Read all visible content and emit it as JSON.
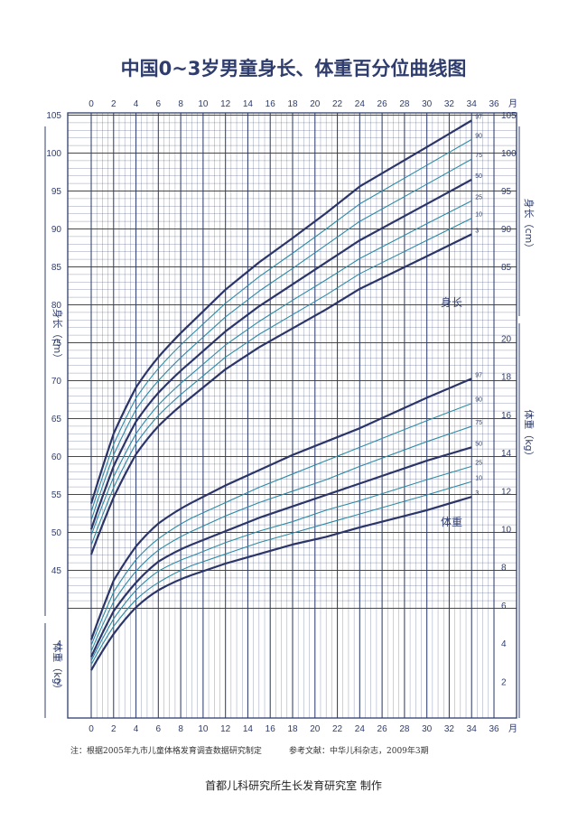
{
  "chart_data": {
    "type": "line",
    "title": "中国0~3岁男童身长、体重百分位曲线图",
    "x_axis": {
      "ticks": [
        "0",
        "2",
        "4",
        "6",
        "8",
        "10",
        "12",
        "14",
        "16",
        "18",
        "20",
        "22",
        "24",
        "26",
        "28",
        "30",
        "32",
        "34",
        "36"
      ],
      "unit": "月",
      "range": [
        0,
        36
      ]
    },
    "height_axis": {
      "label": "身长（cm）",
      "range": [
        40,
        106
      ],
      "ticks": [
        "45",
        "50",
        "55",
        "60",
        "65",
        "70",
        "75",
        "80",
        "85",
        "90",
        "95",
        "100",
        "105"
      ],
      "right_ticks": [
        "85",
        "90",
        "95",
        "100",
        "105"
      ]
    },
    "weight_axis": {
      "label": "体重（kg）",
      "range": [
        0,
        22
      ],
      "left_ticks": [
        "2",
        "4"
      ],
      "right_ticks": [
        "2",
        "4",
        "6",
        "8",
        "10",
        "12",
        "14",
        "16",
        "18",
        "20"
      ]
    },
    "percentiles": [
      "3",
      "10",
      "25",
      "50",
      "75",
      "90",
      "97"
    ],
    "age_months": [
      0,
      2,
      4,
      6,
      9,
      12,
      15,
      18,
      21,
      24,
      30,
      34
    ],
    "height_series": [
      {
        "name": "3",
        "values": [
          47.1,
          54.6,
          60.3,
          64.0,
          67.9,
          71.5,
          74.4,
          76.9,
          79.4,
          82.1,
          86.4,
          89.3
        ]
      },
      {
        "name": "10",
        "values": [
          48.3,
          55.9,
          61.7,
          65.4,
          69.4,
          73.1,
          76.1,
          78.7,
          81.3,
          84.1,
          88.5,
          91.4
        ]
      },
      {
        "name": "25",
        "values": [
          49.6,
          57.3,
          63.0,
          66.8,
          70.9,
          74.7,
          77.8,
          80.6,
          83.3,
          86.1,
          90.7,
          93.7
        ]
      },
      {
        "name": "50",
        "values": [
          50.4,
          58.7,
          64.6,
          68.4,
          72.6,
          76.5,
          79.8,
          82.7,
          85.6,
          88.5,
          93.3,
          96.5
        ]
      },
      {
        "name": "75",
        "values": [
          51.6,
          60.2,
          66.2,
          70.0,
          74.4,
          78.4,
          81.8,
          84.8,
          87.9,
          91.0,
          95.9,
          99.2
        ]
      },
      {
        "name": "90",
        "values": [
          52.7,
          61.6,
          67.7,
          71.6,
          76.1,
          80.2,
          83.7,
          86.8,
          90.0,
          93.3,
          98.4,
          101.8
        ]
      },
      {
        "name": "97",
        "values": [
          53.8,
          63.0,
          69.1,
          73.1,
          77.7,
          82.0,
          85.6,
          88.8,
          92.1,
          95.6,
          100.8,
          104.3
        ]
      }
    ],
    "weight_series": [
      {
        "name": "3",
        "values": [
          2.6,
          4.5,
          5.9,
          6.8,
          7.6,
          8.2,
          8.7,
          9.2,
          9.6,
          10.1,
          11.0,
          11.7
        ]
      },
      {
        "name": "10",
        "values": [
          2.9,
          4.9,
          6.3,
          7.2,
          8.1,
          8.7,
          9.3,
          9.8,
          10.3,
          10.8,
          11.8,
          12.5
        ]
      },
      {
        "name": "25",
        "values": [
          3.1,
          5.3,
          6.8,
          7.8,
          8.6,
          9.3,
          9.9,
          10.4,
          11.0,
          11.5,
          12.6,
          13.3
        ]
      },
      {
        "name": "50",
        "values": [
          3.3,
          5.7,
          7.2,
          8.3,
          9.2,
          9.9,
          10.6,
          11.2,
          11.8,
          12.4,
          13.6,
          14.3
        ]
      },
      {
        "name": "75",
        "values": [
          3.6,
          6.2,
          7.8,
          8.9,
          9.9,
          10.7,
          11.4,
          12.0,
          12.6,
          13.3,
          14.6,
          15.4
        ]
      },
      {
        "name": "90",
        "values": [
          3.9,
          6.7,
          8.4,
          9.5,
          10.6,
          11.4,
          12.2,
          12.9,
          13.6,
          14.3,
          15.7,
          16.6
        ]
      },
      {
        "name": "97",
        "values": [
          4.2,
          7.3,
          9.1,
          10.3,
          11.4,
          12.3,
          13.1,
          13.9,
          14.6,
          15.3,
          16.9,
          17.9
        ]
      }
    ],
    "curve_labels": {
      "height": "身长",
      "weight": "体重"
    },
    "grid": true,
    "colors": {
      "grid": "#2f3d6e",
      "bold_curve": "#2b3568",
      "thin_curve": "#2d8aa6",
      "text": "#2f3d6e"
    }
  },
  "footnote": {
    "source": "注：根据2005年九市儿童体格发育调查数据研究制定",
    "reference": "参考文献：中华儿科杂志，2009年3期"
  },
  "credit": "首都儿科研究所生长发育研究室  制作"
}
